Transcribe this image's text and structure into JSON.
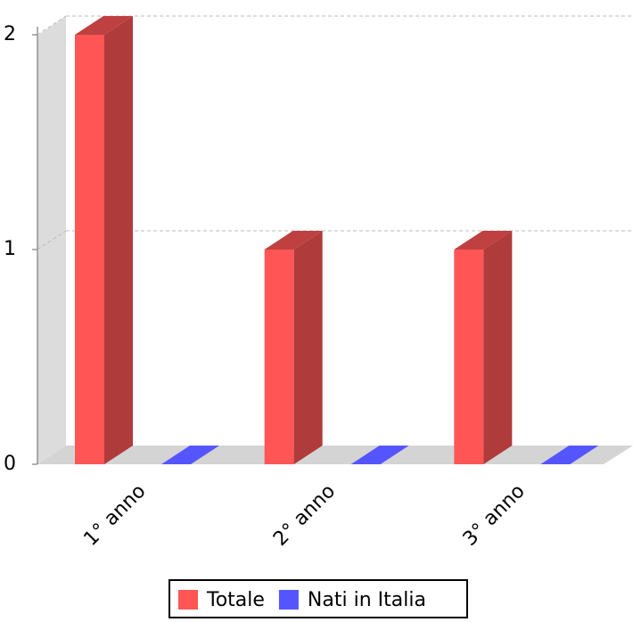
{
  "chart_data": {
    "type": "bar3d",
    "categories": [
      "1° anno",
      "2° anno",
      "3° anno"
    ],
    "series": [
      {
        "name": "Totale",
        "color": "#ff5555",
        "values": [
          2,
          1,
          1
        ]
      },
      {
        "name": "Nati in Italia",
        "color": "#5555ff",
        "values": [
          0,
          0,
          0
        ]
      }
    ],
    "ylim": [
      0,
      2
    ],
    "yticks": [
      0,
      1,
      2
    ],
    "grid": true,
    "legend": "bottom"
  }
}
